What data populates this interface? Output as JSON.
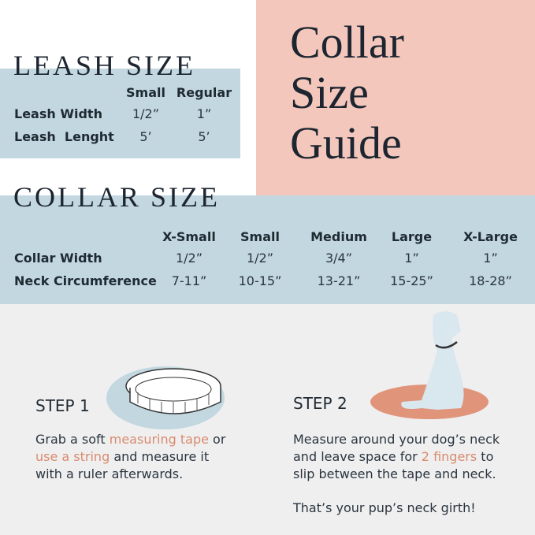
{
  "title": [
    "Collar",
    "Size",
    "Guide"
  ],
  "leash": {
    "heading": "LEASH SIZE",
    "columns": [
      "Small",
      "Regular"
    ],
    "rows": [
      {
        "label": "Leash Width",
        "values": [
          "1/2”",
          "1”"
        ]
      },
      {
        "label": "Leash  Lenght",
        "values": [
          "5’",
          "5’"
        ]
      }
    ]
  },
  "collar": {
    "heading": "COLLAR SIZE",
    "columns": [
      "X-Small",
      "Small",
      "Medium",
      "Large",
      "X-Large"
    ],
    "rows": [
      {
        "label": "Collar Width",
        "values": [
          "1/2”",
          "1/2”",
          "3/4”",
          "1”",
          "1”"
        ]
      },
      {
        "label": "Neck Circumference",
        "values": [
          "7-11”",
          "10-15”",
          "13-21”",
          "15-25”",
          "18-28”"
        ]
      }
    ]
  },
  "step1": {
    "title": "STEP 1",
    "t1": "Grab a soft ",
    "h1": "measuring tape",
    "t2": " or",
    "h2": "use a string",
    "t3": " and measure it",
    "t4": "with a ruler afterwards."
  },
  "step2": {
    "title": "STEP 2",
    "l1": "Measure around your dog’s neck",
    "t2": "and leave space for ",
    "h1": "2 fingers",
    "t3": " to",
    "l3": "slip between the tape and neck.",
    "final": "That’s your pup’s neck girth!"
  },
  "colors": {
    "blue": "#c2d7df",
    "pink": "#f4c7bd",
    "accent": "#d98a6e",
    "gray": "#efefef"
  },
  "icons": [
    "measuring-tape-icon",
    "sitting-dog-icon"
  ]
}
